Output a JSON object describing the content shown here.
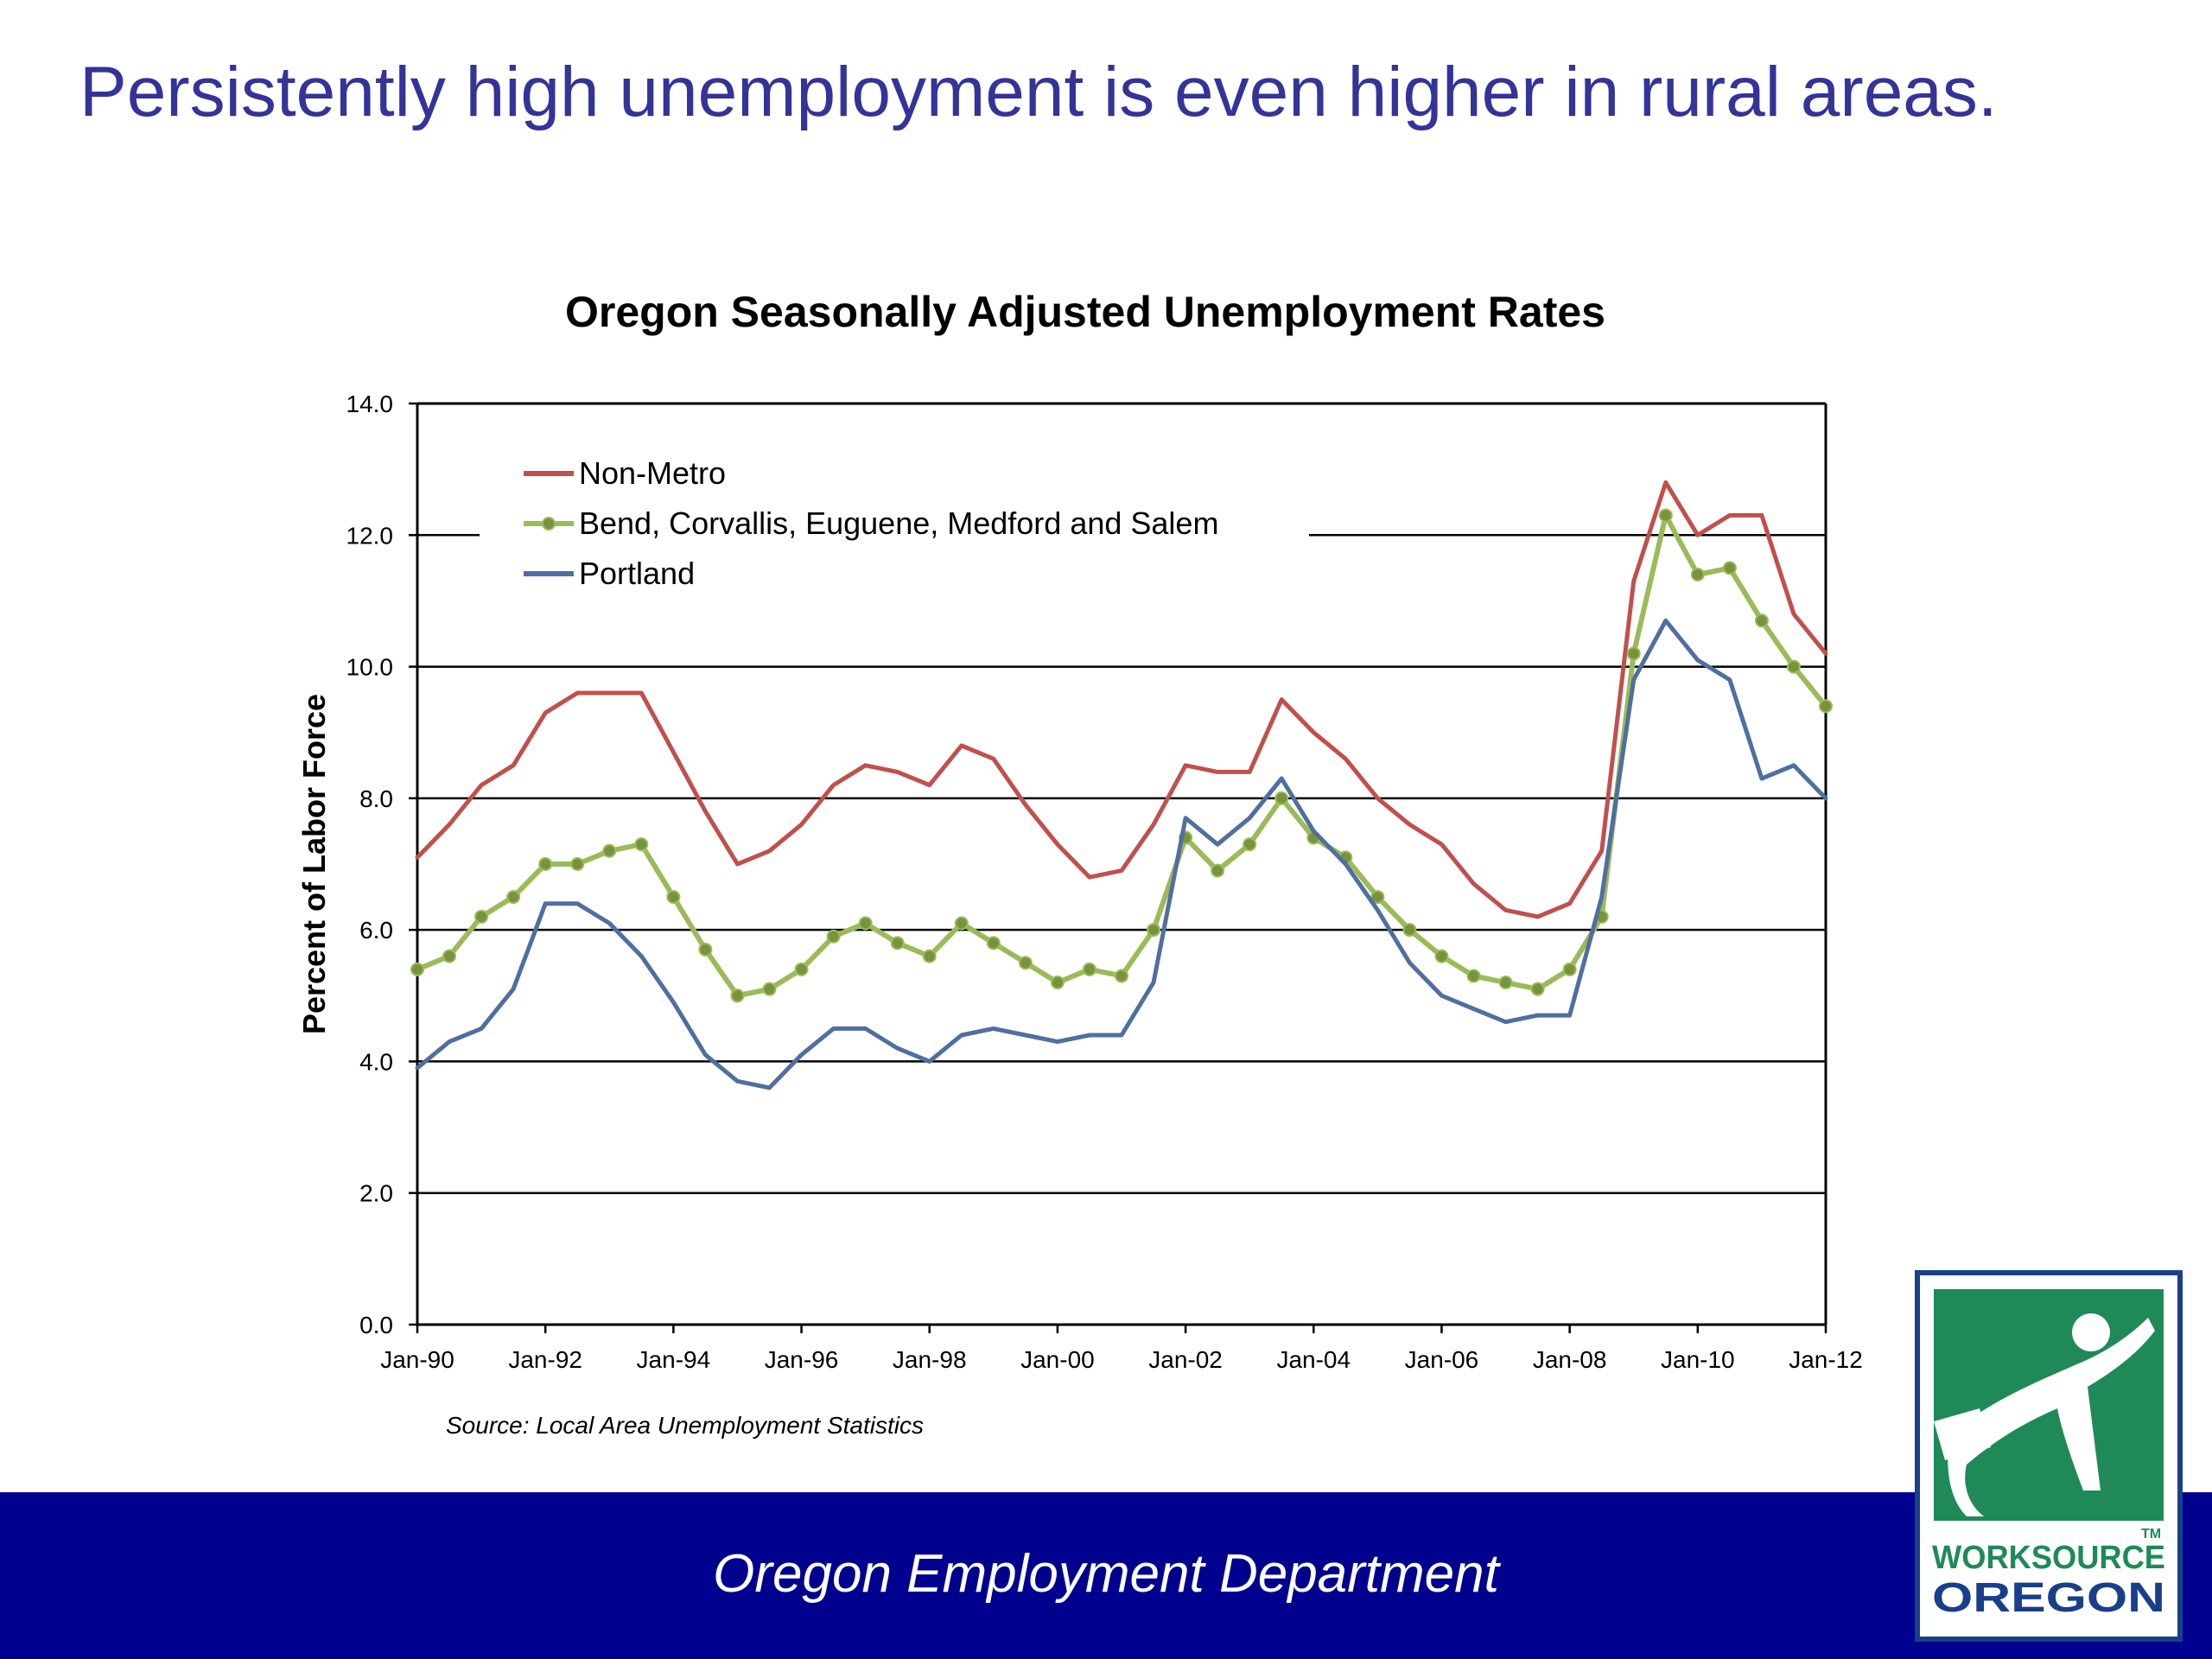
{
  "slide": {
    "title": "Persistently high unemployment is even higher in rural areas.",
    "footer": "Oregon Employment Department",
    "logo": {
      "line1": "WORKSOURCE",
      "line2": "OREGON",
      "tm": "TM"
    },
    "colors": {
      "title": "#33339a",
      "footer_bg": "#00008f",
      "logo_green": "#1f8a57",
      "logo_navy": "#1a3f8a"
    }
  },
  "chart_data": {
    "type": "line",
    "title": "Oregon Seasonally Adjusted Unemployment Rates",
    "ylabel": "Percent of Labor Force",
    "xlabel": "",
    "source": "Source: Local Area Unemployment Statistics",
    "xlim": [
      "1990-01",
      "2012-01"
    ],
    "ylim": [
      0,
      14
    ],
    "yticks": [
      "0.0",
      "2.0",
      "4.0",
      "6.0",
      "8.0",
      "10.0",
      "12.0",
      "14.0"
    ],
    "xticks": [
      "Jan-90",
      "Jan-92",
      "Jan-94",
      "Jan-96",
      "Jan-98",
      "Jan-00",
      "Jan-02",
      "Jan-04",
      "Jan-06",
      "Jan-08",
      "Jan-10",
      "Jan-12"
    ],
    "grid": true,
    "legend_position": "top-left",
    "x": [
      "1990-01",
      "1990-07",
      "1991-01",
      "1991-07",
      "1992-01",
      "1992-07",
      "1993-01",
      "1993-07",
      "1994-01",
      "1994-07",
      "1995-01",
      "1995-07",
      "1996-01",
      "1996-07",
      "1997-01",
      "1997-07",
      "1998-01",
      "1998-07",
      "1999-01",
      "1999-07",
      "2000-01",
      "2000-07",
      "2001-01",
      "2001-07",
      "2002-01",
      "2002-07",
      "2003-01",
      "2003-07",
      "2004-01",
      "2004-07",
      "2005-01",
      "2005-07",
      "2006-01",
      "2006-07",
      "2007-01",
      "2007-07",
      "2008-01",
      "2008-07",
      "2009-01",
      "2009-07",
      "2010-01",
      "2010-07",
      "2011-01",
      "2011-07",
      "2012-01"
    ],
    "series": [
      {
        "name": "Non-Metro",
        "color": "#c0504d",
        "marker": false,
        "values": [
          7.1,
          7.6,
          8.2,
          8.5,
          9.3,
          9.6,
          9.6,
          9.6,
          8.7,
          7.8,
          7.0,
          7.2,
          7.6,
          8.2,
          8.5,
          8.4,
          8.2,
          8.8,
          8.6,
          7.9,
          7.3,
          6.8,
          6.9,
          7.6,
          8.5,
          8.4,
          8.4,
          9.5,
          9.0,
          8.6,
          8.0,
          7.6,
          7.3,
          6.7,
          6.3,
          6.2,
          6.4,
          7.2,
          11.3,
          12.8,
          12.0,
          12.3,
          12.3,
          10.8,
          10.2
        ]
      },
      {
        "name": "Bend, Corvallis, Euguene, Medford and Salem",
        "color": "#9bbb59",
        "marker": true,
        "values": [
          5.4,
          5.6,
          6.2,
          6.5,
          7.0,
          7.0,
          7.2,
          7.3,
          6.5,
          5.7,
          5.0,
          5.1,
          5.4,
          5.9,
          6.1,
          5.8,
          5.6,
          6.1,
          5.8,
          5.5,
          5.2,
          5.4,
          5.3,
          6.0,
          7.4,
          6.9,
          7.3,
          8.0,
          7.4,
          7.1,
          6.5,
          6.0,
          5.6,
          5.3,
          5.2,
          5.1,
          5.4,
          6.2,
          10.2,
          12.3,
          11.4,
          11.5,
          10.7,
          10.0,
          9.4
        ]
      },
      {
        "name": "Portland",
        "color": "#4f6fa0",
        "marker": false,
        "values": [
          3.9,
          4.3,
          4.5,
          5.1,
          6.4,
          6.4,
          6.1,
          5.6,
          4.9,
          4.1,
          3.7,
          3.6,
          4.1,
          4.5,
          4.5,
          4.2,
          4.0,
          4.4,
          4.5,
          4.4,
          4.3,
          4.4,
          4.4,
          5.2,
          7.7,
          7.3,
          7.7,
          8.3,
          7.5,
          7.0,
          6.3,
          5.5,
          5.0,
          4.8,
          4.6,
          4.7,
          4.7,
          6.5,
          9.8,
          10.7,
          10.1,
          9.8,
          8.3,
          8.5,
          8.0
        ]
      }
    ]
  }
}
